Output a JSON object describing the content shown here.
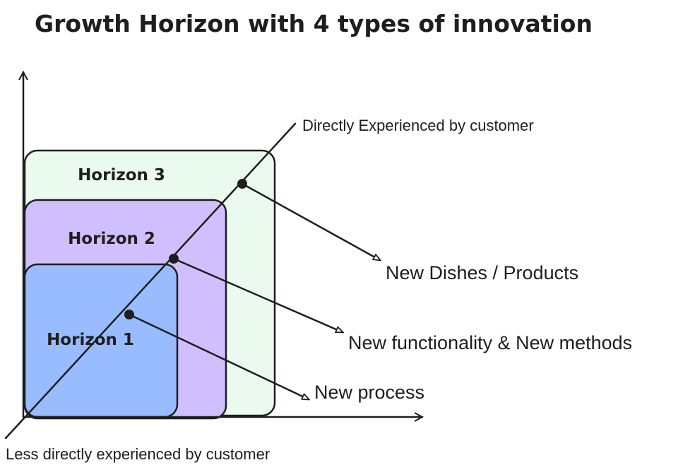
{
  "title": "Growth Horizon with  4 types of innovation",
  "axes": {
    "diagonal_top_label": "Directly Experienced by customer",
    "diagonal_bottom_label": "Less directly experienced by customer"
  },
  "horizons": [
    {
      "label": "Horizon 3",
      "color": "#ebfaee"
    },
    {
      "label": "Horizon 2",
      "color": "#d0bfff"
    },
    {
      "label": "Horizon 1",
      "color": "#99bbff"
    }
  ],
  "innovations": [
    {
      "label": "New Dishes / Products",
      "horizon": "Horizon 3"
    },
    {
      "label": "New functionality & New methods",
      "horizon": "Horizon 2"
    },
    {
      "label": "New process",
      "horizon": "Horizon 1"
    }
  ]
}
